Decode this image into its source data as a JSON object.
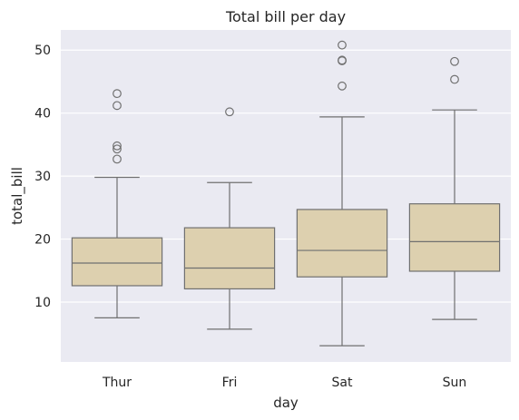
{
  "chart_data": {
    "type": "box",
    "title": "Total bill per day",
    "xlabel": "day",
    "ylabel": "total_bill",
    "categories": [
      "Thur",
      "Fri",
      "Sat",
      "Sun"
    ],
    "ylim": [
      0.5,
      53.2
    ],
    "yticks": [
      10,
      20,
      30,
      40,
      50
    ],
    "grid": true,
    "colors": {
      "background": "#eaeaf2",
      "grid": "#ffffff",
      "box_fill": "#ddd0af",
      "box_edge": "#707070",
      "text": "#262626"
    },
    "series": [
      {
        "category": "Thur",
        "whisker_low": 7.5,
        "q1": 12.6,
        "median": 16.2,
        "q3": 20.2,
        "whisker_high": 29.8,
        "outliers": [
          32.7,
          34.3,
          34.8,
          41.2,
          43.1
        ]
      },
      {
        "category": "Fri",
        "whisker_low": 5.7,
        "q1": 12.1,
        "median": 15.4,
        "q3": 21.8,
        "whisker_high": 28.97,
        "outliers": [
          40.2
        ]
      },
      {
        "category": "Sat",
        "whisker_low": 3.07,
        "q1": 14.0,
        "median": 18.2,
        "q3": 24.7,
        "whisker_high": 39.4,
        "outliers": [
          44.3,
          48.3,
          48.4,
          50.8
        ]
      },
      {
        "category": "Sun",
        "whisker_low": 7.25,
        "q1": 14.9,
        "median": 19.6,
        "q3": 25.6,
        "whisker_high": 40.5,
        "outliers": [
          45.35,
          48.2
        ]
      }
    ]
  }
}
